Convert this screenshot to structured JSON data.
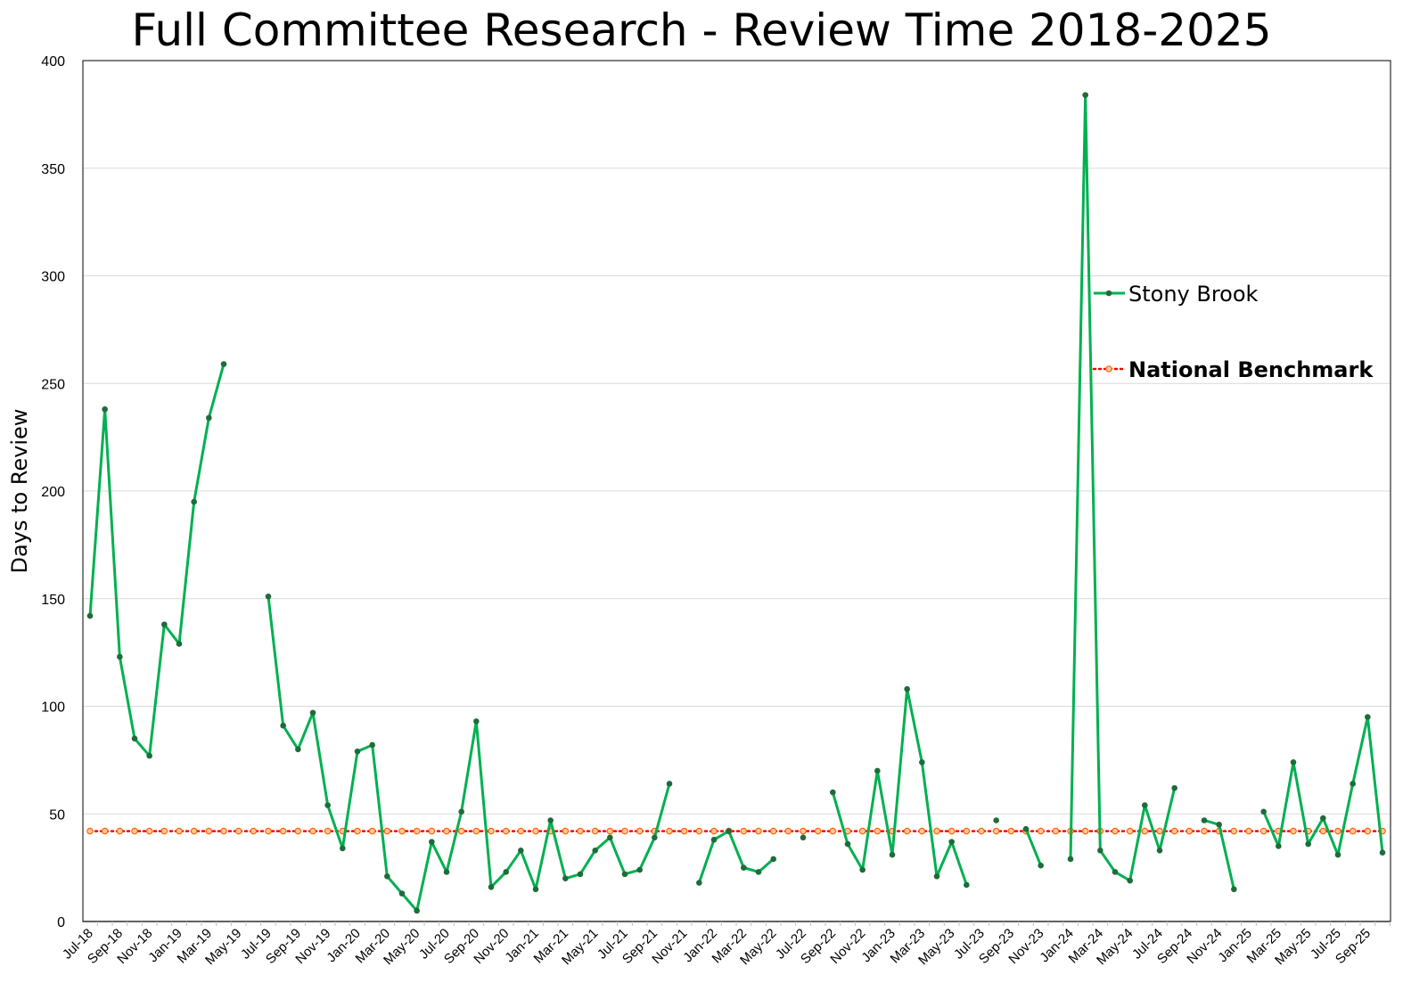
{
  "chart_data": {
    "type": "line",
    "title": "Full Committee Research - Review Time 2018-2025",
    "xlabel": "",
    "ylabel": "Days to Review",
    "ylim": [
      0,
      400
    ],
    "yticks": [
      0,
      50,
      100,
      150,
      200,
      250,
      300,
      350,
      400
    ],
    "grid": "horizontal",
    "legend_position": "right",
    "x_tick_labels": [
      "Jul-18",
      "Sep-18",
      "Nov-18",
      "Jan-19",
      "Mar-19",
      "May-19",
      "Jul-19",
      "Sep-19",
      "Nov-19",
      "Jan-20",
      "Mar-20",
      "May-20",
      "Jul-20",
      "Sep-20",
      "Nov-20",
      "Jan-21",
      "Mar-21",
      "May-21",
      "Jul-21",
      "Sep-21",
      "Nov-21",
      "Jan-22",
      "Mar-22",
      "May-22",
      "Jul-22",
      "Sep-22",
      "Nov-22",
      "Jan-23",
      "Mar-23",
      "May-23",
      "Jul-23",
      "Sep-23",
      "Nov-23",
      "Jan-24",
      "Mar-24",
      "May-24",
      "Jul-24",
      "Sep-24",
      "Nov-24",
      "Jan-25",
      "Mar-25",
      "May-25",
      "Jul-25",
      "Sep-25"
    ],
    "months": [
      "Jul-18",
      "Aug-18",
      "Sep-18",
      "Oct-18",
      "Nov-18",
      "Dec-18",
      "Jan-19",
      "Feb-19",
      "Mar-19",
      "Apr-19",
      "May-19",
      "Jun-19",
      "Jul-19",
      "Aug-19",
      "Sep-19",
      "Oct-19",
      "Nov-19",
      "Dec-19",
      "Jan-20",
      "Feb-20",
      "Mar-20",
      "Apr-20",
      "May-20",
      "Jun-20",
      "Jul-20",
      "Aug-20",
      "Sep-20",
      "Oct-20",
      "Nov-20",
      "Dec-20",
      "Jan-21",
      "Feb-21",
      "Mar-21",
      "Apr-21",
      "May-21",
      "Jun-21",
      "Jul-21",
      "Aug-21",
      "Sep-21",
      "Oct-21",
      "Nov-21",
      "Dec-21",
      "Jan-22",
      "Feb-22",
      "Mar-22",
      "Apr-22",
      "May-22",
      "Jun-22",
      "Jul-22",
      "Aug-22",
      "Sep-22",
      "Oct-22",
      "Nov-22",
      "Dec-22",
      "Jan-23",
      "Feb-23",
      "Mar-23",
      "Apr-23",
      "May-23",
      "Jun-23",
      "Jul-23",
      "Aug-23",
      "Sep-23",
      "Oct-23",
      "Nov-23",
      "Dec-23",
      "Jan-24",
      "Feb-24",
      "Mar-24",
      "Apr-24",
      "May-24",
      "Jun-24",
      "Jul-24",
      "Aug-24",
      "Sep-24",
      "Oct-24",
      "Nov-24",
      "Dec-24",
      "Jan-25",
      "Feb-25",
      "Mar-25",
      "Apr-25",
      "May-25",
      "Jun-25",
      "Jul-25",
      "Aug-25",
      "Sep-25",
      "Oct-25"
    ],
    "series": [
      {
        "name": "Stony Brook",
        "color": "#00B050",
        "marker_color": "#1F6B3A",
        "style": "solid",
        "values": [
          142,
          238,
          123,
          85,
          77,
          138,
          129,
          195,
          234,
          259,
          null,
          null,
          151,
          91,
          80,
          97,
          54,
          34,
          79,
          82,
          21,
          13,
          5,
          37,
          23,
          51,
          93,
          16,
          23,
          33,
          15,
          47,
          20,
          22,
          33,
          39,
          22,
          24,
          39,
          64,
          null,
          18,
          38,
          42,
          25,
          23,
          29,
          null,
          39,
          null,
          60,
          36,
          24,
          70,
          31,
          108,
          74,
          21,
          37,
          17,
          null,
          47,
          null,
          43,
          26,
          null,
          29,
          384,
          33,
          23,
          19,
          54,
          33,
          62,
          null,
          47,
          45,
          15,
          null,
          51,
          35,
          74,
          36,
          48,
          31,
          64,
          95,
          32
        ]
      },
      {
        "name": "National Benchmark",
        "color": "#FF0000",
        "marker_color": "#FF6600",
        "style": "dotted",
        "constant": 42
      }
    ]
  }
}
